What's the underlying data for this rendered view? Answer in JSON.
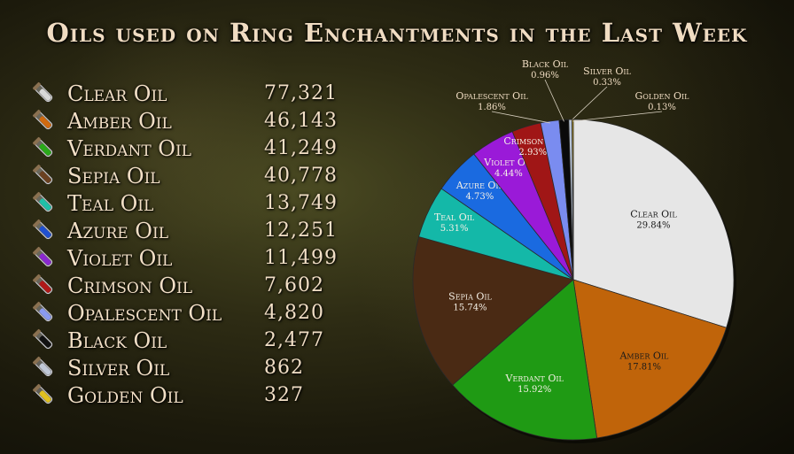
{
  "chart_data": {
    "type": "pie",
    "title": "Oils used on Ring Enchantments in the Last Week",
    "slices": [
      {
        "label": "Clear Oil",
        "value": 77321,
        "percent": "29.84%",
        "color": "#e6e6e6"
      },
      {
        "label": "Amber Oil",
        "value": 46143,
        "percent": "17.81%",
        "color": "#c0640a"
      },
      {
        "label": "Verdant Oil",
        "value": 41249,
        "percent": "15.92%",
        "color": "#1f9a14"
      },
      {
        "label": "Sepia Oil",
        "value": 40778,
        "percent": "15.74%",
        "color": "#4a2a14"
      },
      {
        "label": "Teal Oil",
        "value": 13749,
        "percent": "5.31%",
        "color": "#14b8a8"
      },
      {
        "label": "Azure Oil",
        "value": 12251,
        "percent": "4.73%",
        "color": "#1a6ae0"
      },
      {
        "label": "Violet Oil",
        "value": 11499,
        "percent": "4.44%",
        "color": "#9a1ad8"
      },
      {
        "label": "Crimson Oil",
        "value": 7602,
        "percent": "2.93%",
        "color": "#a01616"
      },
      {
        "label": "Opalescent Oil",
        "value": 4820,
        "percent": "1.86%",
        "color": "#7a8cf0"
      },
      {
        "label": "Black Oil",
        "value": 2477,
        "percent": "0.96%",
        "color": "#0a0a0a"
      },
      {
        "label": "Silver Oil",
        "value": 862,
        "percent": "0.33%",
        "color": "#b8c4d4"
      },
      {
        "label": "Golden Oil",
        "value": 327,
        "percent": "0.13%",
        "color": "#e8c020"
      }
    ],
    "legend": [
      {
        "label": "Clear Oil",
        "count": "77,321",
        "icon": "clear-oil-vial-icon",
        "liquid": "#d8d8d8"
      },
      {
        "label": "Amber Oil",
        "count": "46,143",
        "icon": "amber-oil-vial-icon",
        "liquid": "#d06a10"
      },
      {
        "label": "Verdant Oil",
        "count": "41,249",
        "icon": "verdant-oil-vial-icon",
        "liquid": "#2aa81a"
      },
      {
        "label": "Sepia Oil",
        "count": "40,778",
        "icon": "sepia-oil-vial-icon",
        "liquid": "#6a4020"
      },
      {
        "label": "Teal Oil",
        "count": "13,749",
        "icon": "teal-oil-vial-icon",
        "liquid": "#20c0a8"
      },
      {
        "label": "Azure Oil",
        "count": "12,251",
        "icon": "azure-oil-vial-icon",
        "liquid": "#2050d0"
      },
      {
        "label": "Violet Oil",
        "count": "11,499",
        "icon": "violet-oil-vial-icon",
        "liquid": "#8a28d0"
      },
      {
        "label": "Crimson Oil",
        "count": "7,602",
        "icon": "crimson-oil-vial-icon",
        "liquid": "#b01818"
      },
      {
        "label": "Opalescent Oil",
        "count": "4,820",
        "icon": "opalescent-oil-vial-icon",
        "liquid": "#8a9af0"
      },
      {
        "label": "Black Oil",
        "count": "2,477",
        "icon": "black-oil-vial-icon",
        "liquid": "#111111"
      },
      {
        "label": "Silver Oil",
        "count": "862",
        "icon": "silver-oil-vial-icon",
        "liquid": "#c0c8d8"
      },
      {
        "label": "Golden Oil",
        "count": "327",
        "icon": "golden-oil-vial-icon",
        "liquid": "#e0c020"
      }
    ],
    "label_color_outside": "#f0dcc2",
    "label_color_inside_light": "#1a1a1a",
    "label_color_inside_dark": "#f5f0e6"
  }
}
